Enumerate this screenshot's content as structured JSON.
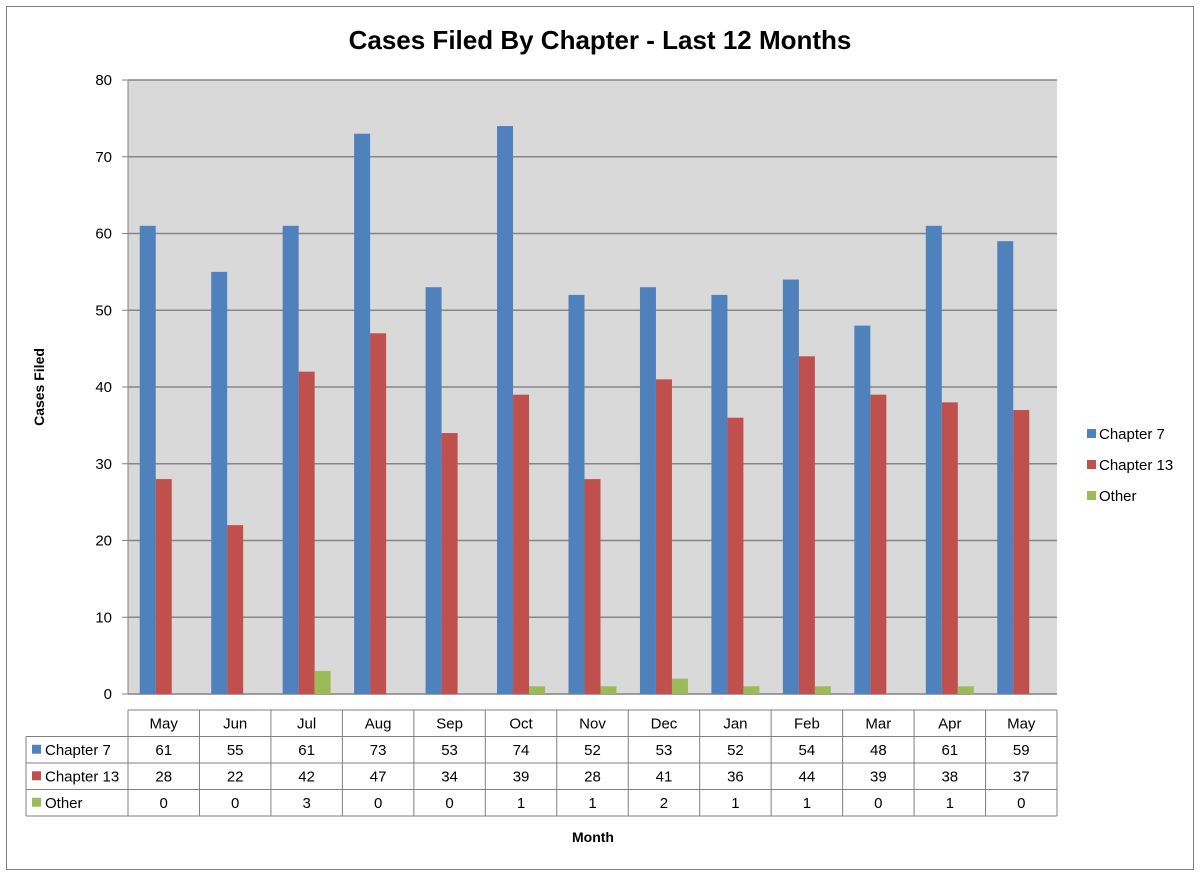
{
  "chart_data": {
    "type": "bar",
    "title": "Cases Filed By Chapter - Last 12 Months",
    "xlabel": "Month",
    "ylabel": "Cases Filed",
    "ylim": [
      0,
      80
    ],
    "yticks": [
      0,
      10,
      20,
      30,
      40,
      50,
      60,
      70,
      80
    ],
    "grid": true,
    "legend": "right",
    "data_table": true,
    "categories": [
      "May",
      "Jun",
      "Jul",
      "Aug",
      "Sep",
      "Oct",
      "Nov",
      "Dec",
      "Jan",
      "Feb",
      "Mar",
      "Apr",
      "May"
    ],
    "series": [
      {
        "name": "Chapter 7",
        "color": "#4F81BD",
        "values": [
          61,
          55,
          61,
          73,
          53,
          74,
          52,
          53,
          52,
          54,
          48,
          61,
          59
        ]
      },
      {
        "name": "Chapter 13",
        "color": "#C0504D",
        "values": [
          28,
          22,
          42,
          47,
          34,
          39,
          28,
          41,
          36,
          44,
          39,
          38,
          37
        ]
      },
      {
        "name": "Other",
        "color": "#9BBB59",
        "values": [
          0,
          0,
          3,
          0,
          0,
          1,
          1,
          2,
          1,
          1,
          0,
          1,
          0
        ]
      }
    ]
  },
  "colors": {
    "plot_background": "#D9D9D9",
    "gridline": "#868686",
    "border": "#808080"
  }
}
